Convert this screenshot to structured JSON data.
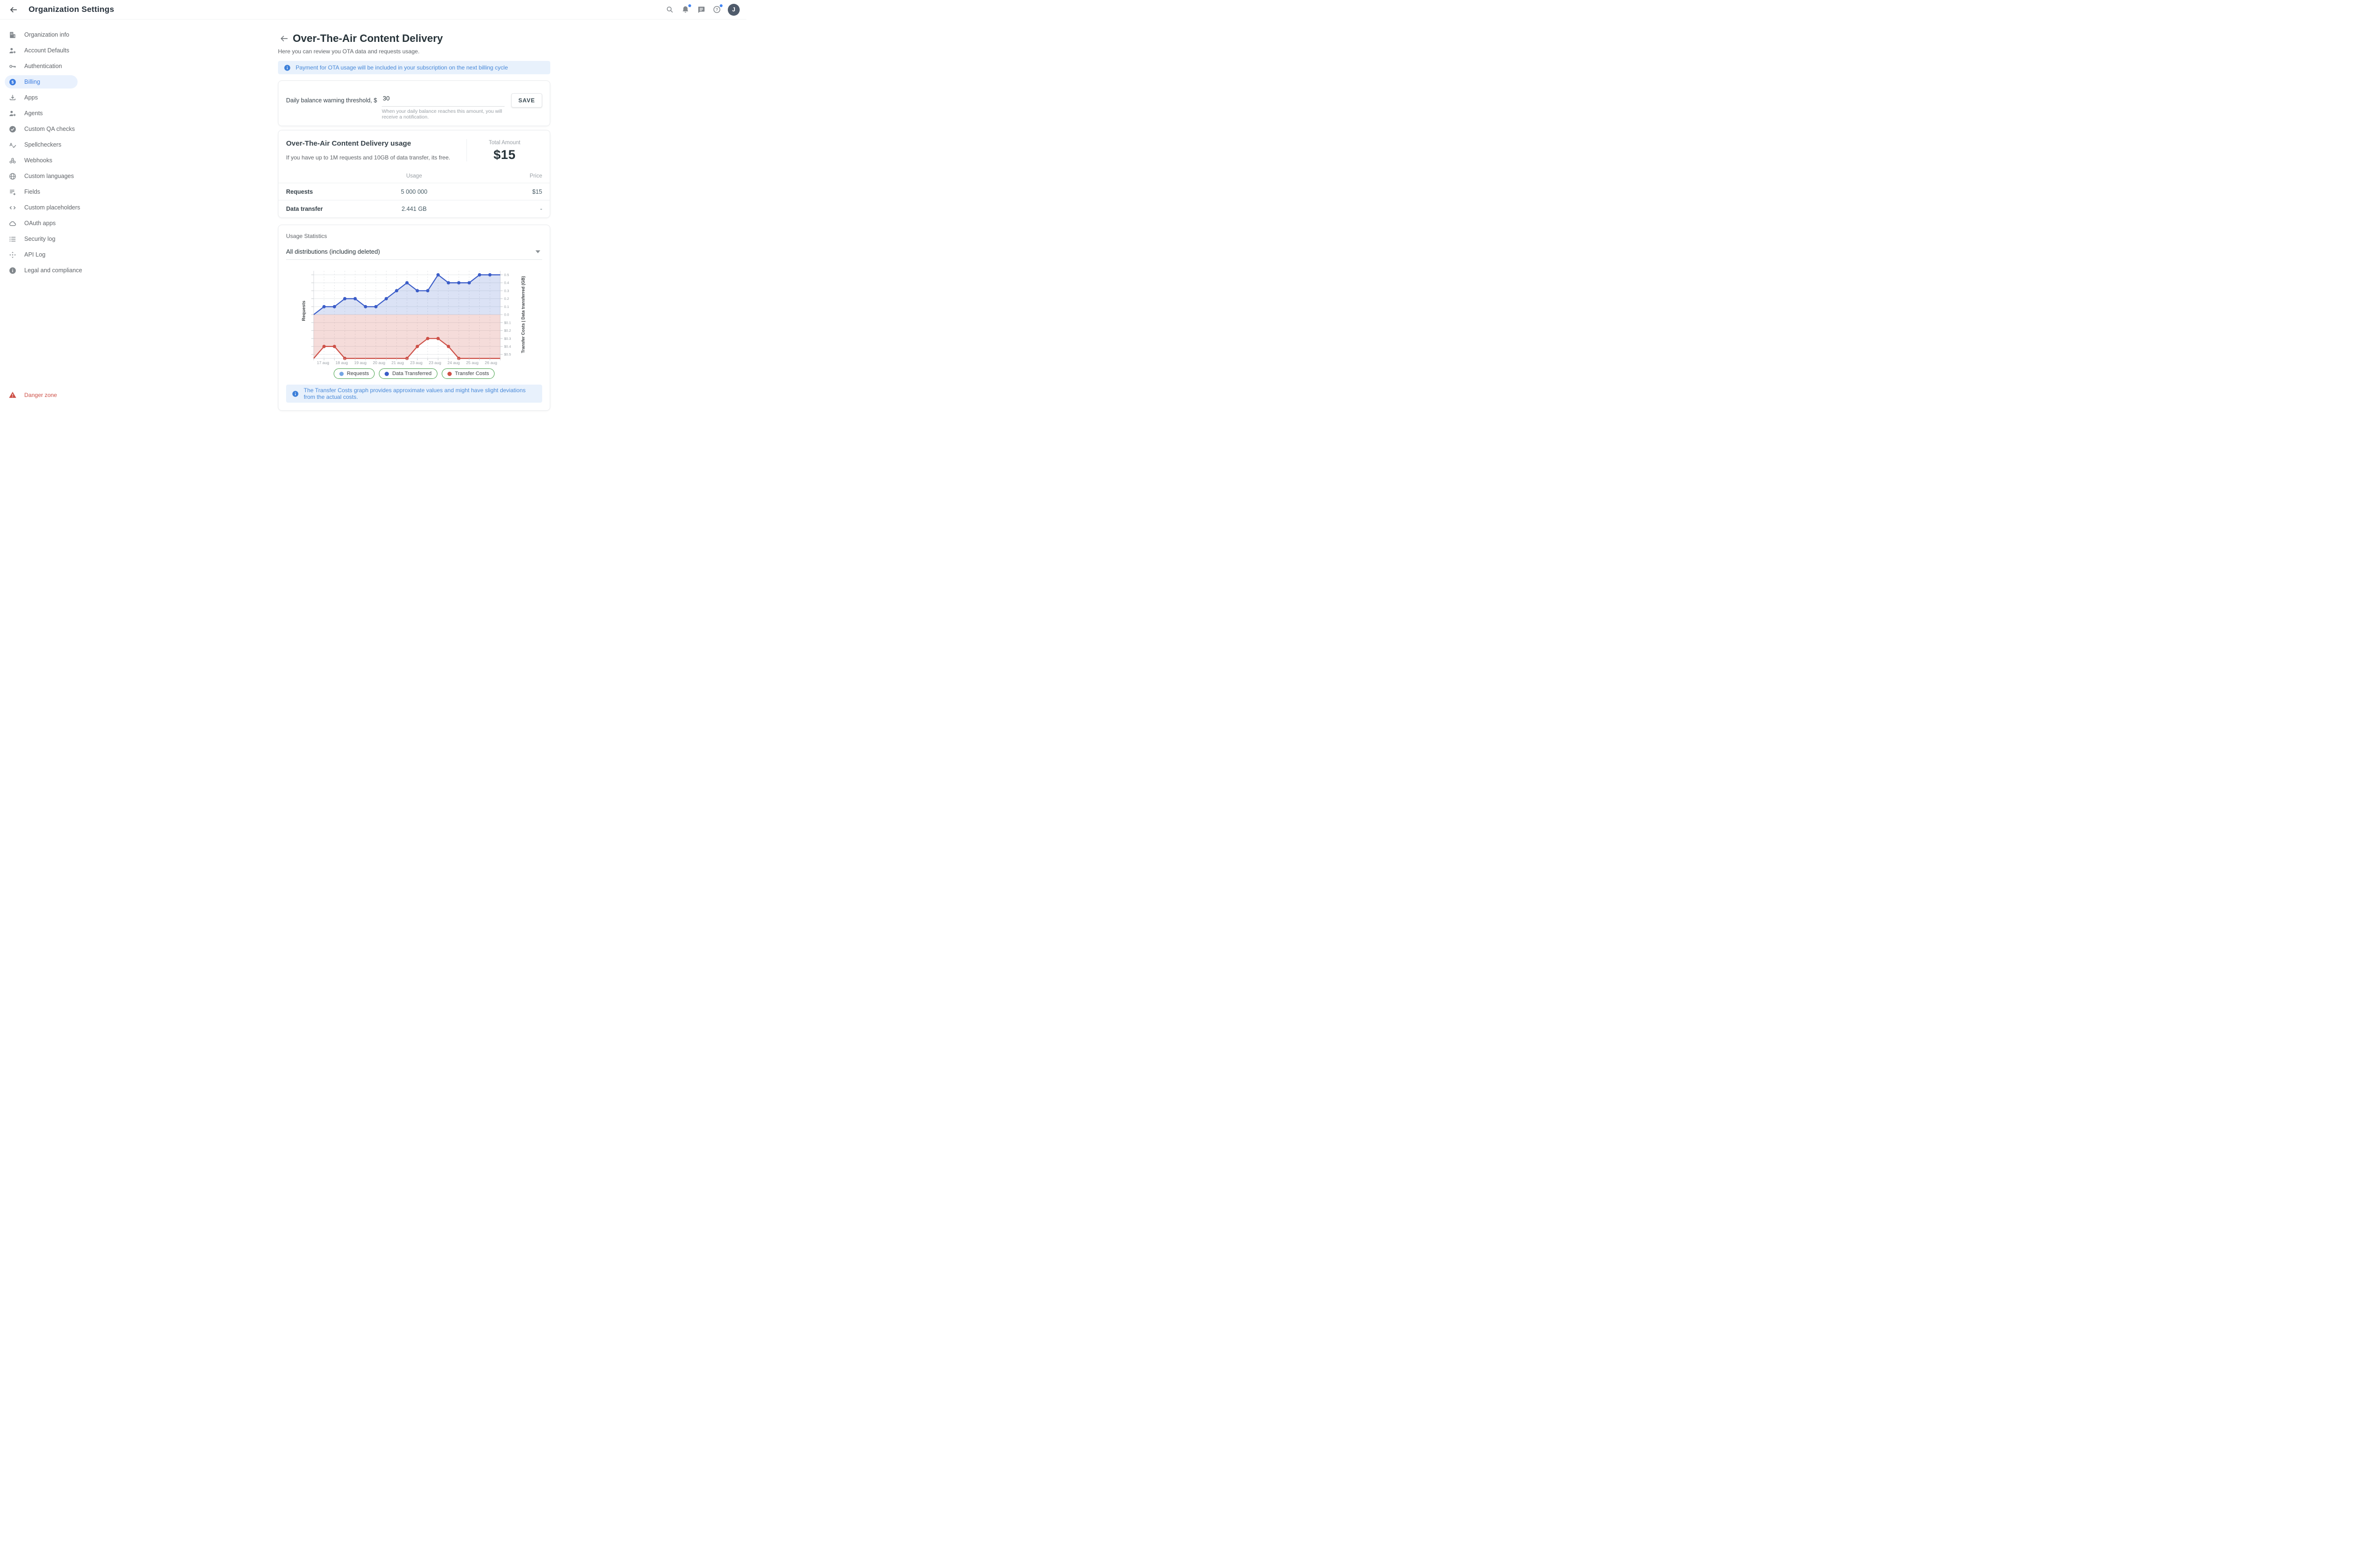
{
  "topbar": {
    "title": "Organization Settings",
    "avatar_initial": "J",
    "icons": [
      "back-arrow-icon",
      "search-icon",
      "notifications-bell-icon",
      "chat-icon",
      "help-icon"
    ]
  },
  "sidebar": {
    "items": [
      {
        "label": "Organization info",
        "icon": "building-icon",
        "active": false
      },
      {
        "label": "Account Defaults",
        "icon": "user-gear-icon",
        "active": false
      },
      {
        "label": "Authentication",
        "icon": "key-icon",
        "active": false
      },
      {
        "label": "Billing",
        "icon": "dollar-circle-icon",
        "active": true
      },
      {
        "label": "Apps",
        "icon": "download-icon",
        "active": false
      },
      {
        "label": "Agents",
        "icon": "user-gear-icon",
        "active": false
      },
      {
        "label": "Custom QA checks",
        "icon": "check-circle-icon",
        "active": false
      },
      {
        "label": "Spellcheckers",
        "icon": "spellcheck-icon",
        "active": false
      },
      {
        "label": "Webhooks",
        "icon": "webhook-icon",
        "active": false
      },
      {
        "label": "Custom languages",
        "icon": "globe-icon",
        "active": false
      },
      {
        "label": "Fields",
        "icon": "list-add-icon",
        "active": false
      },
      {
        "label": "Custom placeholders",
        "icon": "code-icon",
        "active": false
      },
      {
        "label": "OAuth apps",
        "icon": "cloud-icon",
        "active": false
      },
      {
        "label": "Security log",
        "icon": "list-icon",
        "active": false
      },
      {
        "label": "API Log",
        "icon": "api-icon",
        "active": false
      },
      {
        "label": "Legal and compliance",
        "icon": "info-circle-icon",
        "active": false
      }
    ],
    "danger": {
      "label": "Danger zone",
      "icon": "warning-triangle-icon"
    }
  },
  "page": {
    "title": "Over-The-Air Content Delivery",
    "subtitle": "Here you can review you OTA data and requests usage.",
    "banner": "Payment for OTA usage will be included in your subscription on the next billing cycle"
  },
  "threshold": {
    "label": "Daily balance warning threshold, $",
    "value": "30",
    "helper": "When your daily balance reaches this amount, you will receive a notification.",
    "save_label": "SAVE"
  },
  "usage": {
    "heading": "Over-The-Air Content Delivery usage",
    "subtitle": "If you have up to 1M requests and 10GB of data transfer, its free.",
    "total_label": "Total Amount",
    "total_value": "$15",
    "table": {
      "columns": [
        "",
        "Usage",
        "Price"
      ],
      "rows": [
        {
          "name": "Requests",
          "usage": "5 000 000",
          "price": "$15"
        },
        {
          "name": "Data transfer",
          "usage": "2.441 GB",
          "price": "-"
        }
      ]
    }
  },
  "statistics": {
    "heading": "Usage Statistics",
    "select_value": "All distributions (including deleted)",
    "banner": "The Transfer Costs graph provides approximate values and might have slight deviations from the actual costs."
  },
  "chart_data": {
    "type": "line",
    "x_labels": [
      "17 aug",
      "18 aug",
      "19 aug",
      "20 aug",
      "21 aug",
      "23 aug",
      "23 aug",
      "24 aug",
      "25 aug",
      "26 aug"
    ],
    "left_axis_label": "Requests",
    "right_axis_label": "Transfer Costs | Data transferred (GB)",
    "right_ticks_top": [
      "0.5",
      "0.4",
      "0.3",
      "0.2",
      "0.1",
      "0.0"
    ],
    "right_ticks_bottom": [
      "$0.1",
      "$0.2",
      "$0.3",
      "$0.4",
      "$0.5"
    ],
    "axis_half_range": 0.55,
    "grid": true,
    "series": [
      {
        "name": "Requests / Data Transferred",
        "direction": "up",
        "color": "#3a5cc8",
        "fill": "rgba(58,92,200,0.18)",
        "values": [
          0,
          0.1,
          0.1,
          0.2,
          0.2,
          0.1,
          0.1,
          0.2,
          0.3,
          0.4,
          0.3,
          0.3,
          0.5,
          0.4,
          0.4,
          0.4,
          0.5,
          0.5,
          0.5
        ],
        "marker_indices": [
          1,
          2,
          3,
          4,
          5,
          6,
          7,
          8,
          9,
          10,
          11,
          12,
          13,
          14,
          15,
          16,
          17
        ]
      },
      {
        "name": "Transfer Costs",
        "direction": "down",
        "color": "#cd5047",
        "fill": "rgba(205,80,71,0.2)",
        "values": [
          0.55,
          0.4,
          0.4,
          0.55,
          0.55,
          0.55,
          0.55,
          0.55,
          0.55,
          0.55,
          0.4,
          0.3,
          0.3,
          0.4,
          0.55,
          0.55,
          0.55,
          0.55,
          0.55
        ],
        "marker_indices": [
          1,
          2,
          3,
          9,
          10,
          11,
          12,
          13,
          14
        ]
      }
    ],
    "legend": [
      {
        "label": "Requests",
        "color": "#74a5e3"
      },
      {
        "label": "Data Transferred",
        "color": "#3a5cc8"
      },
      {
        "label": "Transfer Costs",
        "color": "#cd5047"
      }
    ],
    "legend_position": "bottom",
    "legend_border_color": "#43a047"
  },
  "colors": {
    "accent_blue": "#3d7de0",
    "banner_bg": "#e8f1fc",
    "banner_text": "#4788d8",
    "danger_red": "#cd5047",
    "avatar_bg": "#4f5b6b",
    "badge_blue": "#4285f4"
  }
}
